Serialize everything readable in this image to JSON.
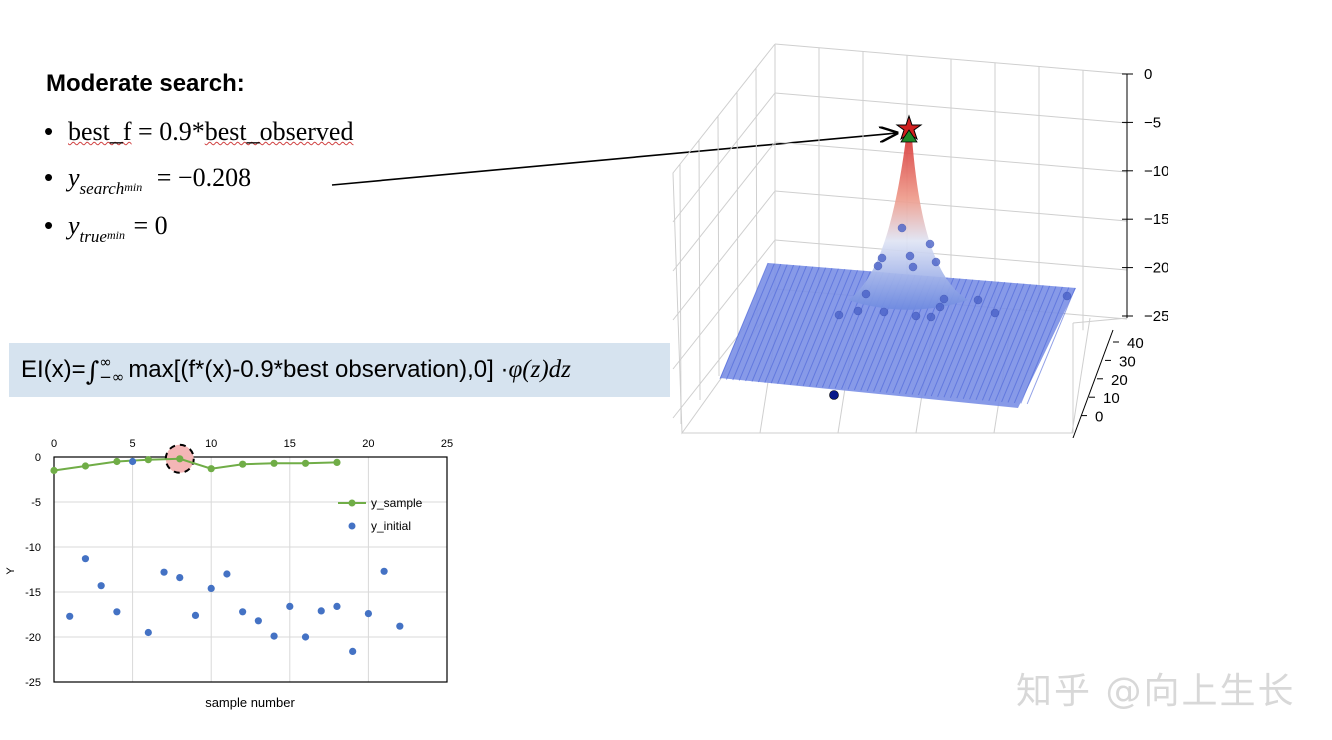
{
  "slide": {
    "heading": "Moderate search:",
    "bullets": [
      {
        "marker": "•",
        "text_underlined": "best_f",
        "text_rest": " = 0.9*",
        "text_underlined2": "best_observed"
      },
      {
        "marker": "•",
        "var": "y",
        "sub": "search",
        "subsub": "min",
        "value": " = −0.208"
      },
      {
        "marker": "•",
        "var": "y",
        "sub": "true",
        "subsub": "min",
        "value": " = 0"
      }
    ],
    "ei_formula": {
      "prefix": "EI(x)=",
      "integral": "∫",
      "upper": "∞",
      "lower": "−∞",
      "body": " max[(f*(x)-0.9*best observation),0] · ",
      "tail": "φ(z)dz"
    },
    "watermark": "知乎 @向上生长",
    "colors": {
      "ei_box": "#d6e3ef",
      "y_sample": "#70ad47",
      "y_initial": "#4472c4",
      "highlight": "#f4b6b6",
      "surface_blue": "#5b78e0",
      "peak_red": "#d83a3a"
    }
  },
  "chart_data": [
    {
      "type": "scatter",
      "title": "",
      "xlabel": "sample number",
      "ylabel": "Y",
      "xlim": [
        0,
        25
      ],
      "ylim": [
        -25,
        0
      ],
      "x_ticks": [
        0,
        5,
        10,
        15,
        20,
        25
      ],
      "y_ticks": [
        0,
        -5,
        -10,
        -15,
        -20,
        -25
      ],
      "x_axis_position": "top",
      "grid": true,
      "legend_position": "right",
      "highlighted_point": {
        "x": 8,
        "y": -0.2
      },
      "series": [
        {
          "name": "y_sample",
          "kind": "line-markers",
          "color": "#70ad47",
          "points": [
            [
              0,
              -1.5
            ],
            [
              2,
              -1.0
            ],
            [
              4,
              -0.5
            ],
            [
              6,
              -0.3
            ],
            [
              8,
              -0.2
            ],
            [
              10,
              -1.3
            ],
            [
              12,
              -0.8
            ],
            [
              14,
              -0.7
            ],
            [
              16,
              -0.7
            ],
            [
              18,
              -0.6
            ]
          ]
        },
        {
          "name": "y_initial",
          "kind": "markers",
          "color": "#4472c4",
          "points": [
            [
              1,
              -17.7
            ],
            [
              2,
              -11.3
            ],
            [
              3,
              -14.3
            ],
            [
              4,
              -17.2
            ],
            [
              5,
              -0.5
            ],
            [
              6,
              -19.5
            ],
            [
              7,
              -12.8
            ],
            [
              8,
              -13.4
            ],
            [
              9,
              -17.6
            ],
            [
              10,
              -14.6
            ],
            [
              11,
              -13.0
            ],
            [
              12,
              -17.2
            ],
            [
              13,
              -18.2
            ],
            [
              14,
              -19.9
            ],
            [
              15,
              -16.6
            ],
            [
              16,
              -20.0
            ],
            [
              17,
              -17.1
            ],
            [
              18,
              -16.6
            ],
            [
              19,
              -21.6
            ],
            [
              20,
              -17.4
            ],
            [
              21,
              -12.7
            ],
            [
              22,
              -18.8
            ]
          ]
        }
      ]
    },
    {
      "type": "surface3d",
      "title": "",
      "z_ticks": [
        0,
        -5,
        -10,
        -15,
        -20,
        -25
      ],
      "zlim": [
        -25,
        0
      ],
      "y_ticks": [
        40,
        30,
        20,
        10,
        0
      ],
      "ylim": [
        -10,
        40
      ],
      "peak_marker": "star",
      "description_colormap": "coolwarm"
    }
  ]
}
